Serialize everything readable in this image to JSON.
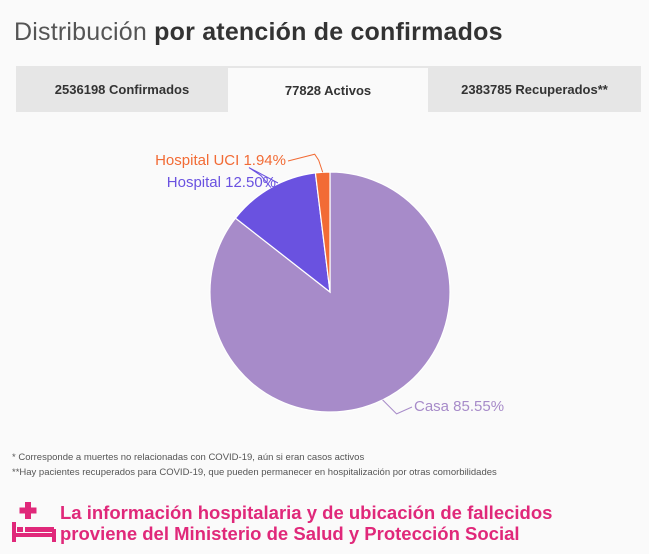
{
  "title": {
    "light": "Distribución",
    "bold": "por atención de confirmados"
  },
  "tabs": [
    {
      "label": "2536198 Confirmados"
    },
    {
      "label": "77828 Activos",
      "active": true
    },
    {
      "label": "2383785 Recuperados**"
    }
  ],
  "chart_data": {
    "type": "pie",
    "slices": [
      {
        "label": "Casa 85.55%",
        "value": 85.55,
        "color": "#a78bc9"
      },
      {
        "label": "Hospital 12.50%",
        "value": 12.5,
        "color": "#6a52e0"
      },
      {
        "label": "Hospital UCI 1.94%",
        "value": 1.94,
        "color": "#f26b35"
      }
    ]
  },
  "notes": [
    "* Corresponde a muertes no relacionadas con COVID-19, aún si eran casos activos",
    "**Hay pacientes recuperados para COVID-19, que pueden permanecer en hospitalización por otras comorbilidades"
  ],
  "footer": {
    "line1": "La información hospitalaria y de ubicación de fallecidos",
    "line2": "proviene del Ministerio de Salud y Protección Social",
    "icon": "hospital-bed-icon",
    "color": "#e0287a"
  }
}
